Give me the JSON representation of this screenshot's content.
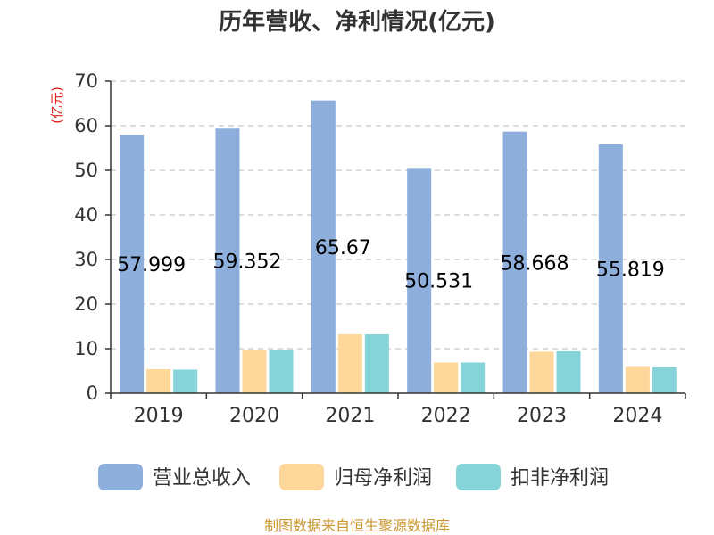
{
  "chart_data": {
    "type": "bar",
    "title": "历年营收、净利情况(亿元)",
    "ylabel": "(亿元)",
    "xlabel": "",
    "categories": [
      "2019",
      "2020",
      "2021",
      "2022",
      "2023",
      "2024"
    ],
    "ylim": [
      0,
      70
    ],
    "yticks": [
      0,
      10,
      20,
      30,
      40,
      50,
      60,
      70
    ],
    "grid": true,
    "legend_position": "bottom",
    "series": [
      {
        "name": "营业总收入",
        "color": "#8EAEDC",
        "values": [
          57.999,
          59.352,
          65.67,
          50.531,
          58.668,
          55.819
        ],
        "labels": [
          "57.999",
          "59.352",
          "65.67",
          "50.531",
          "58.668",
          "55.819"
        ]
      },
      {
        "name": "归母净利润",
        "color": "#FDD89A",
        "values": [
          5.4,
          9.8,
          13.2,
          6.9,
          9.3,
          5.9
        ]
      },
      {
        "name": "扣非净利润",
        "color": "#86D4D9",
        "values": [
          5.3,
          9.8,
          13.2,
          6.9,
          9.4,
          5.8
        ]
      }
    ],
    "source": "制图数据来自恒生聚源数据库",
    "colors": {
      "title": "#333333",
      "axis": "#333333",
      "grid": "#c8c8c8",
      "ylabel": "#e01f1f",
      "source": "#c8962d"
    }
  }
}
